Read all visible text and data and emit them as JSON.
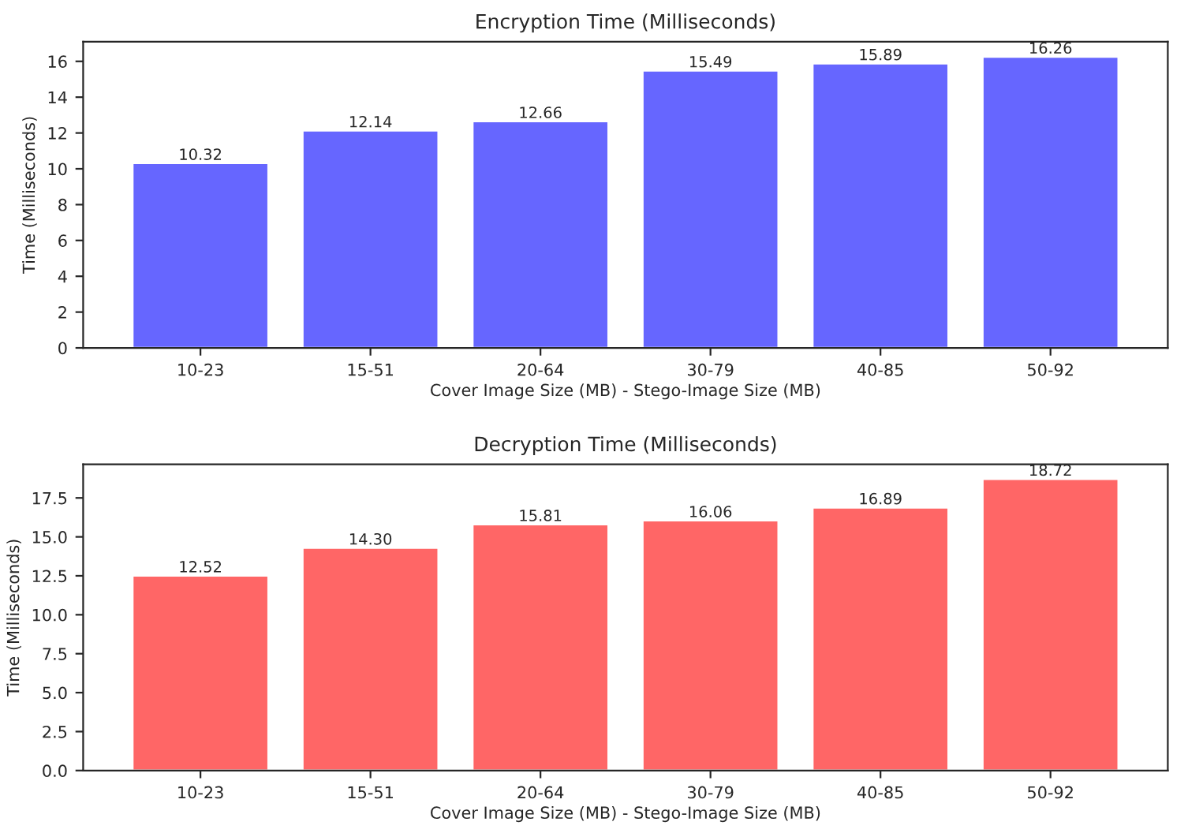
{
  "chart_data": [
    {
      "type": "bar",
      "title": "Encryption Time (Milliseconds)",
      "xlabel": "Cover Image Size (MB) - Stego-Image Size (MB)",
      "ylabel": "Time (Milliseconds)",
      "categories": [
        "10-23",
        "15-51",
        "20-64",
        "30-79",
        "40-85",
        "50-92"
      ],
      "values": [
        10.32,
        12.14,
        12.66,
        15.49,
        15.89,
        16.26
      ],
      "value_labels": [
        "10.32",
        "12.14",
        "12.66",
        "15.49",
        "15.89",
        "16.26"
      ],
      "color": "#6666ff",
      "ylim": [
        0,
        17.1
      ],
      "yticks": [
        0,
        2,
        4,
        6,
        8,
        10,
        12,
        14,
        16
      ]
    },
    {
      "type": "bar",
      "title": "Decryption Time (Milliseconds)",
      "xlabel": "Cover Image Size (MB) - Stego-Image Size (MB)",
      "ylabel": "Time (Milliseconds)",
      "categories": [
        "10-23",
        "15-51",
        "20-64",
        "30-79",
        "40-85",
        "50-92"
      ],
      "values": [
        12.52,
        14.3,
        15.81,
        16.06,
        16.89,
        18.72
      ],
      "value_labels": [
        "12.52",
        "14.30",
        "15.81",
        "16.06",
        "16.89",
        "18.72"
      ],
      "color": "#ff6666",
      "ylim": [
        0,
        19.66
      ],
      "yticks": [
        {
          "value": 0,
          "label": "0.0"
        },
        {
          "value": 2.5,
          "label": "2.5"
        },
        {
          "value": 5,
          "label": "5.0"
        },
        {
          "value": 7.5,
          "label": "7.5"
        },
        {
          "value": 10,
          "label": "10.0"
        },
        {
          "value": 12.5,
          "label": "12.5"
        },
        {
          "value": 15,
          "label": "15.0"
        },
        {
          "value": 17.5,
          "label": "17.5"
        }
      ]
    }
  ]
}
